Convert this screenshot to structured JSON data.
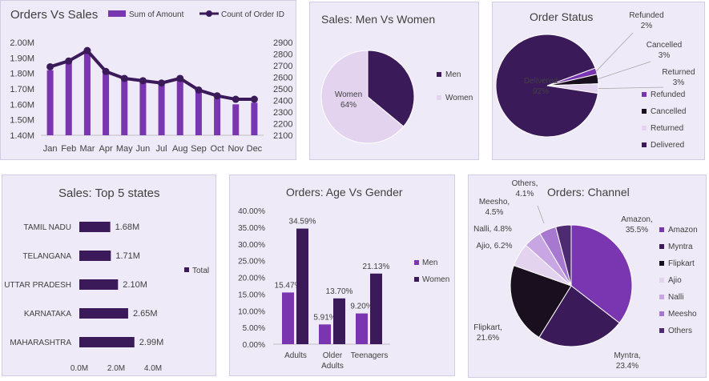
{
  "colors": {
    "dark": "#3b1a5a",
    "mid": "#7a35b0",
    "light": "#c7a6e3",
    "pale": "#e3d3ef",
    "black": "#1a0f1f",
    "axis": "#bfbfbf"
  },
  "chart_data": [
    {
      "id": "orders-vs-sales",
      "type": "bar+line",
      "title": "Orders Vs Sales",
      "categories": [
        "Jan",
        "Feb",
        "Mar",
        "Apr",
        "May",
        "Jun",
        "Jul",
        "Aug",
        "Sep",
        "Oct",
        "Nov",
        "Dec"
      ],
      "series": [
        {
          "name": "Sum of Amount",
          "axis": "left",
          "type": "bar",
          "values": [
            1.82,
            1.87,
            1.93,
            1.82,
            1.77,
            1.76,
            1.75,
            1.78,
            1.69,
            1.64,
            1.6,
            1.61
          ]
        },
        {
          "name": "Count of Order ID",
          "axis": "right",
          "type": "line",
          "values": [
            2690,
            2740,
            2830,
            2650,
            2590,
            2570,
            2550,
            2590,
            2490,
            2440,
            2410,
            2410
          ]
        }
      ],
      "yleft": {
        "ticks": [
          "2.00M",
          "1.90M",
          "1.80M",
          "1.70M",
          "1.60M",
          "1.50M",
          "1.40M"
        ],
        "min": 1.4,
        "max": 2.0
      },
      "yright": {
        "ticks": [
          "2900",
          "2800",
          "2700",
          "2600",
          "2500",
          "2400",
          "2300",
          "2200",
          "2100"
        ],
        "min": 2100,
        "max": 2900
      }
    },
    {
      "id": "sales-men-women",
      "type": "pie",
      "title": "Sales: Men Vs Women",
      "slices": [
        {
          "name": "Men",
          "value": 36,
          "label": ""
        },
        {
          "name": "Women",
          "value": 64,
          "label": "Women\n64%"
        }
      ],
      "legend": [
        "Men",
        "Women"
      ]
    },
    {
      "id": "order-status",
      "type": "pie",
      "title": "Order Status",
      "slices": [
        {
          "name": "Refunded",
          "value": 2,
          "label": "Refunded\n2%"
        },
        {
          "name": "Cancelled",
          "value": 3,
          "label": "Cancelled\n3%"
        },
        {
          "name": "Returned",
          "value": 3,
          "label": "Returned\n3%"
        },
        {
          "name": "Delivered",
          "value": 92,
          "label": "Delivered\n92%"
        }
      ],
      "legend": [
        "Refunded",
        "Cancelled",
        "Returned",
        "Delivered"
      ]
    },
    {
      "id": "top-5-states",
      "type": "bar",
      "orientation": "horizontal",
      "title": "Sales: Top 5 states",
      "categories": [
        "TAMIL NADU",
        "TELANGANA",
        "UTTAR PRADESH",
        "KARNATAKA",
        "MAHARASHTRA"
      ],
      "values": [
        1.68,
        1.71,
        2.1,
        2.65,
        2.99
      ],
      "labels": [
        "1.68M",
        "1.71M",
        "2.10M",
        "2.65M",
        "2.99M"
      ],
      "xticks": [
        "0.0M",
        "2.0M",
        "4.0M"
      ],
      "xlim": [
        0,
        4
      ],
      "legend": [
        "Total"
      ]
    },
    {
      "id": "age-vs-gender",
      "type": "bar",
      "title": "Orders: Age Vs Gender",
      "categories": [
        "Adults",
        "Older\nAdults",
        "Teenagers"
      ],
      "series": [
        {
          "name": "Men",
          "values": [
            15.47,
            5.91,
            9.2
          ],
          "labels": [
            "15.47%",
            "5.91%",
            "9.20%"
          ]
        },
        {
          "name": "Women",
          "values": [
            34.59,
            13.7,
            21.13
          ],
          "labels": [
            "34.59%",
            "13.70%",
            "21.13%"
          ]
        }
      ],
      "yticks": [
        "40.00%",
        "35.00%",
        "30.00%",
        "25.00%",
        "20.00%",
        "15.00%",
        "10.00%",
        "5.00%",
        "0.00%"
      ],
      "ylim": [
        0,
        40
      ]
    },
    {
      "id": "orders-channel",
      "type": "pie",
      "title": "Orders: Channel",
      "slices": [
        {
          "name": "Amazon",
          "value": 35.5,
          "label": "Amazon,\n35.5%"
        },
        {
          "name": "Myntra",
          "value": 23.4,
          "label": "Myntra,\n23.4%"
        },
        {
          "name": "Flipkart",
          "value": 21.6,
          "label": "Flipkart,\n21.6%"
        },
        {
          "name": "Ajio",
          "value": 6.2,
          "label": "Ajio, 6.2%"
        },
        {
          "name": "Nalli",
          "value": 4.8,
          "label": "Nalli, 4.8%"
        },
        {
          "name": "Meesho",
          "value": 4.5,
          "label": "Meesho,\n4.5%"
        },
        {
          "name": "Others",
          "value": 4.1,
          "label": "Others,\n4.1%"
        }
      ],
      "legend": [
        "Amazon",
        "Myntra",
        "Flipkart",
        "Ajio",
        "Nalli",
        "Meesho",
        "Others"
      ]
    }
  ]
}
